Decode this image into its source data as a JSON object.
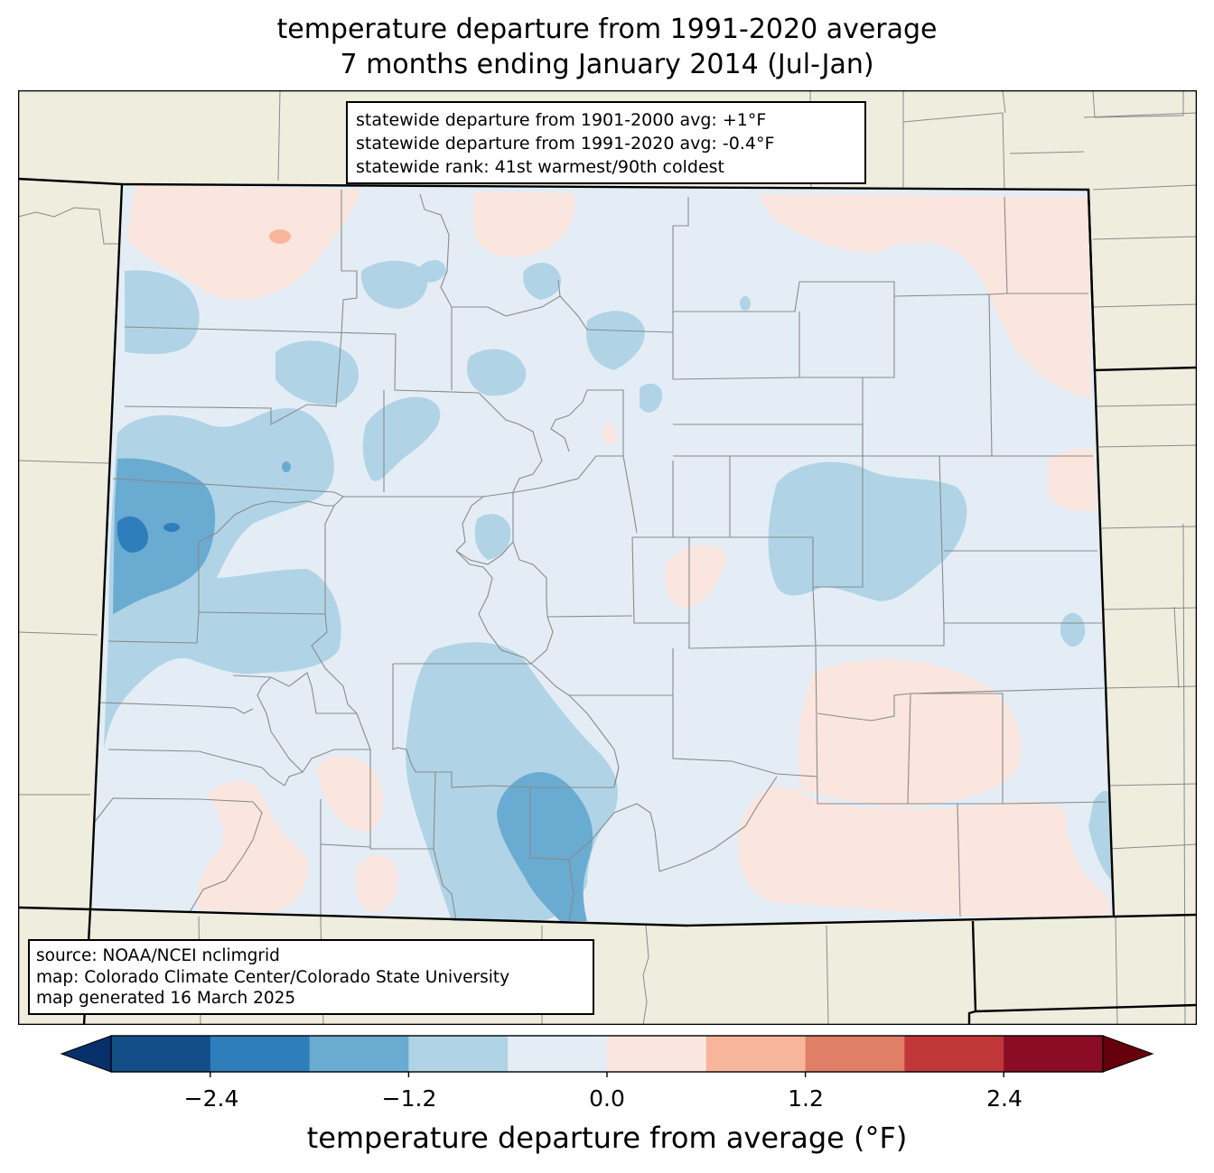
{
  "title_line1": "temperature departure from 1991-2020 average",
  "title_line2": "7 months ending January 2014 (Jul-Jan)",
  "stats": [
    "statewide departure from 1901-2000 avg: +1°F",
    "statewide departure from 1991-2020 avg: -0.4°F",
    "statewide rank: 41st warmest/90th coldest"
  ],
  "credits": [
    "source: NOAA/NCEI nclimgrid",
    "map: Colorado Climate Center/Colorado State University",
    "map generated 16 March 2025"
  ],
  "colorbar": {
    "label": "temperature departure from average (°F)",
    "ticks": [
      "−2.4",
      "−1.2",
      "0.0",
      "1.2",
      "2.4"
    ],
    "min": -3.0,
    "max": 3.0,
    "step": 0.6,
    "under_color": "#08306b",
    "over_color": "#67000d",
    "colors": [
      "#134d88",
      "#2f7ebc",
      "#6aabd1",
      "#b0d4e6",
      "#e4edf5",
      "#fae6de",
      "#f7b69b",
      "#e07e67",
      "#c13639",
      "#8b0c25"
    ]
  },
  "map_colors": {
    "background_land": "#efedde",
    "neutral": "#e4edf5",
    "light_blue": "#b0d4e6",
    "mid_blue": "#6aabd1",
    "dark_blue": "#2f7ebc",
    "light_red": "#fae6de",
    "mid_red": "#f7b69b",
    "county_lines": "#8a8a8a",
    "state_lines": "#000000"
  }
}
